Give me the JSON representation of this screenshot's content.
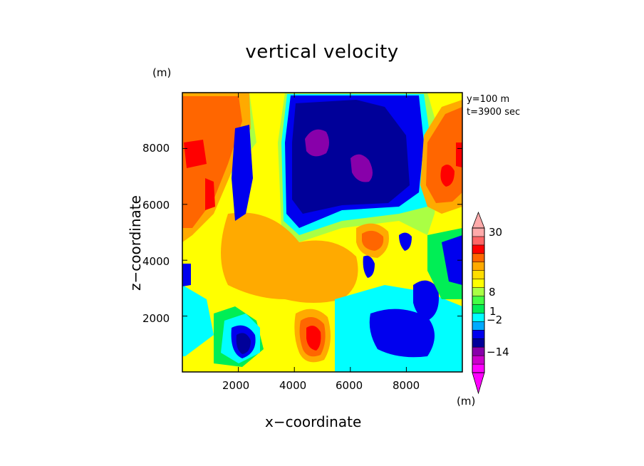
{
  "chart_data": {
    "type": "heatmap",
    "title": "vertical velocity",
    "xlabel": "x−coordinate",
    "ylabel": "z−coordinate",
    "x_unit": "(m)",
    "y_unit": "(m)",
    "colorbar_unit": "(m)",
    "annotation": [
      "y=100 m",
      "t=3900 sec"
    ],
    "xlim": [
      0,
      10000
    ],
    "ylim": [
      0,
      10000
    ],
    "xticks": [
      2000,
      4000,
      6000,
      8000
    ],
    "yticks": [
      2000,
      4000,
      6000,
      8000
    ],
    "xtick_labels": [
      "2000",
      "4000",
      "6000",
      "8000"
    ],
    "ytick_labels": [
      "2000",
      "4000",
      "6000",
      "8000"
    ],
    "colorbar": {
      "labels": [
        "30",
        "8",
        "1",
        "−2",
        "−14"
      ],
      "colors": [
        "#ff00ff",
        "#cc00cc",
        "#8800aa",
        "#000099",
        "#0000ee",
        "#00aaff",
        "#00ffff",
        "#00ee55",
        "#44ff44",
        "#aaff44",
        "#ffff00",
        "#ffdd00",
        "#ffaa00",
        "#ff6600",
        "#ff0000",
        "#ff6666",
        "#ffaaaa"
      ]
    },
    "features": [
      {
        "kind": "upward-max",
        "x": 1000,
        "z": 7500,
        "value": 15
      },
      {
        "kind": "upward-max",
        "x": 9200,
        "z": 7200,
        "value": 15
      },
      {
        "kind": "upward-max",
        "x": 4700,
        "z": 1200,
        "value": 10
      },
      {
        "kind": "downward-min",
        "x": 4600,
        "z": 8300,
        "value": -14
      },
      {
        "kind": "downward-min",
        "x": 6100,
        "z": 7100,
        "value": -15
      },
      {
        "kind": "downward-min",
        "x": 2300,
        "z": 1000,
        "value": -10
      }
    ]
  }
}
